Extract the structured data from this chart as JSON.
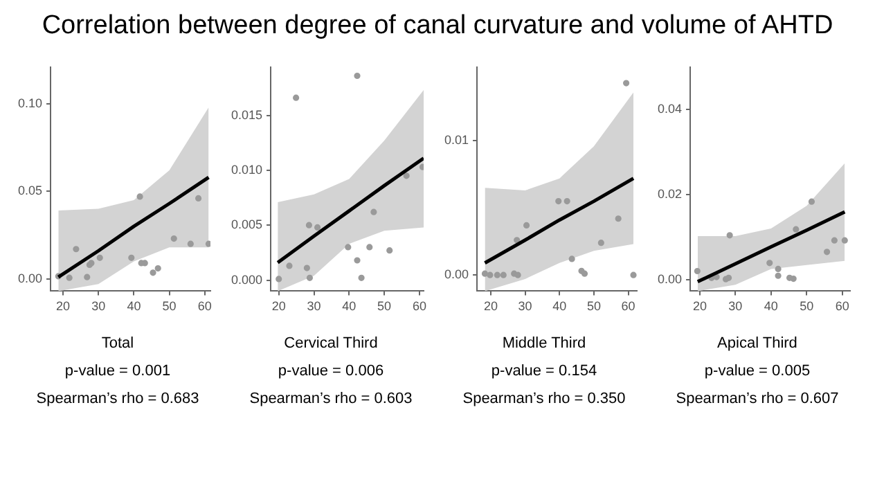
{
  "chart_data": [
    {
      "type": "scatter",
      "title": "Correlation between degree of canal curvature and volume of AHTD",
      "xlabel": "Total",
      "annotations": [
        "p-value = 0.001",
        "Spearman’s rho = 0.683"
      ],
      "xlim": [
        16.5,
        61.6
      ],
      "xticks": [
        20,
        30,
        40,
        50,
        60
      ],
      "ylim": [
        -0.007,
        0.121
      ],
      "yticks": [
        {
          "value": 0,
          "label": "0.00"
        },
        {
          "value": 0.05,
          "label": "0.05"
        },
        {
          "value": 0.1,
          "label": "0.10"
        }
      ],
      "grid": false,
      "legend": false,
      "series": [
        {
          "marker": "circle",
          "color": "#9a9a9a",
          "x": [
            18.7,
            21.8,
            23.7,
            26.8,
            27.5,
            28,
            30.4,
            39.3,
            41.7,
            42.1,
            43.1,
            45.4,
            46.8,
            51.3,
            56,
            58.2,
            61.1
          ],
          "values": [
            0.0015,
            0.0006,
            0.017,
            0.001,
            0.008,
            0.009,
            0.012,
            0.012,
            0.047,
            0.009,
            0.009,
            0.0035,
            0.006,
            0.023,
            0.02,
            0.046,
            0.02
          ]
        },
        {
          "type": "line",
          "color": "#000000",
          "x": [
            18.7,
            30,
            40,
            50,
            61.1
          ],
          "values": [
            0.001,
            0.016,
            0.03,
            0.043,
            0.058
          ],
          "lower": [
            -0.007,
            -0.003,
            0.01,
            0.018,
            0.018
          ],
          "upper": [
            0.039,
            0.04,
            0.045,
            0.062,
            0.098
          ]
        }
      ]
    },
    {
      "type": "scatter",
      "xlabel": "Cervical Third",
      "annotations": [
        "p-value = 0.006",
        "Spearman’s rho = 0.603"
      ],
      "xlim": [
        17.7,
        61.2
      ],
      "xticks": [
        20,
        30,
        40,
        50,
        60
      ],
      "ylim": [
        -0.001,
        0.0194
      ],
      "yticks": [
        {
          "value": 0,
          "label": "0.000"
        },
        {
          "value": 0.005,
          "label": "0.005"
        },
        {
          "value": 0.01,
          "label": "0.010"
        },
        {
          "value": 0.015,
          "label": "0.015"
        }
      ],
      "grid": false,
      "legend": false,
      "series": [
        {
          "marker": "circle",
          "color": "#9a9a9a",
          "x": [
            20,
            23,
            24.9,
            28,
            28.6,
            28.8,
            31,
            39.7,
            42.3,
            42.3,
            43.5,
            45.8,
            47,
            51.5,
            56.3,
            60.9
          ],
          "values": [
            0.0001,
            0.0013,
            0.0166,
            0.0011,
            0.005,
            0.0002,
            0.0048,
            0.003,
            0.0186,
            0.0018,
            0.0002,
            0.003,
            0.0062,
            0.0027,
            0.0095,
            0.0103
          ]
        },
        {
          "type": "line",
          "color": "#000000",
          "x": [
            19.7,
            30,
            40,
            50,
            61.2
          ],
          "values": [
            0.0016,
            0.004,
            0.0063,
            0.0086,
            0.0111
          ],
          "lower": [
            -0.001,
            0.0004,
            0.0033,
            0.0045,
            0.0048
          ],
          "upper": [
            0.0071,
            0.0078,
            0.0092,
            0.0127,
            0.0173
          ]
        }
      ]
    },
    {
      "type": "scatter",
      "xlabel": "Middle Third",
      "annotations": [
        "p-value = 0.154",
        "Spearman’s rho = 0.350"
      ],
      "xlim": [
        16,
        62.5
      ],
      "xticks": [
        20,
        30,
        40,
        50,
        60
      ],
      "ylim": [
        -0.0012,
        0.0155
      ],
      "yticks": [
        {
          "value": 0,
          "label": "0.00"
        },
        {
          "value": 0.01,
          "label": "0.01"
        }
      ],
      "grid": false,
      "legend": false,
      "series": [
        {
          "marker": "circle",
          "color": "#9a9a9a",
          "x": [
            18.3,
            19.8,
            21.9,
            23.7,
            26.8,
            27.9,
            27.6,
            30.4,
            39.7,
            42.2,
            43.6,
            46.4,
            47.3,
            52.1,
            57.1,
            59.4,
            61.5
          ],
          "values": [
            0.0001,
            0,
            0,
            0,
            0.0001,
            0,
            0.0026,
            0.0037,
            0.0055,
            0.0055,
            0.0012,
            0.0003,
            0.0001,
            0.0024,
            0.0042,
            0.0143,
            0
          ]
        },
        {
          "type": "line",
          "color": "#000000",
          "x": [
            18.3,
            30,
            40,
            50,
            61.5
          ],
          "values": [
            0.0009,
            0.0026,
            0.0041,
            0.0055,
            0.0072
          ],
          "lower": [
            -0.0012,
            -0.0003,
            0.0009,
            0.0018,
            0.0023
          ],
          "upper": [
            0.0065,
            0.0063,
            0.0072,
            0.0096,
            0.0136
          ]
        }
      ]
    },
    {
      "type": "scatter",
      "xlabel": "Apical Third",
      "annotations": [
        "p-value = 0.005",
        "Spearman’s rho = 0.607"
      ],
      "xlim": [
        17.3,
        62.2
      ],
      "xticks": [
        20,
        30,
        40,
        50,
        60
      ],
      "ylim": [
        -0.0026,
        0.05
      ],
      "yticks": [
        {
          "value": 0,
          "label": "0.00"
        },
        {
          "value": 0.02,
          "label": "0.02"
        },
        {
          "value": 0.04,
          "label": "0.04"
        }
      ],
      "grid": false,
      "legend": false,
      "series": [
        {
          "marker": "circle",
          "color": "#9a9a9a",
          "x": [
            19.3,
            23.3,
            24.7,
            27.3,
            28.1,
            28.4,
            39.6,
            42,
            42,
            45.2,
            46.3,
            47,
            51.4,
            55.7,
            57.8,
            60.7
          ],
          "values": [
            0.0021,
            0.0005,
            0.0007,
            0.0002,
            0.0005,
            0.0105,
            0.004,
            0.0026,
            0.001,
            0.0005,
            0.0003,
            0.0119,
            0.0184,
            0.0066,
            0.0093,
            0.0093
          ]
        },
        {
          "type": "line",
          "color": "#000000",
          "x": [
            19.4,
            30,
            40,
            50,
            60.7
          ],
          "values": [
            -0.0004,
            0.0038,
            0.0078,
            0.0117,
            0.016
          ],
          "lower": [
            -0.0026,
            -0.0011,
            0.0026,
            0.0035,
            0.0045
          ],
          "upper": [
            0.0103,
            0.0103,
            0.0121,
            0.0174,
            0.0274
          ]
        }
      ]
    }
  ]
}
